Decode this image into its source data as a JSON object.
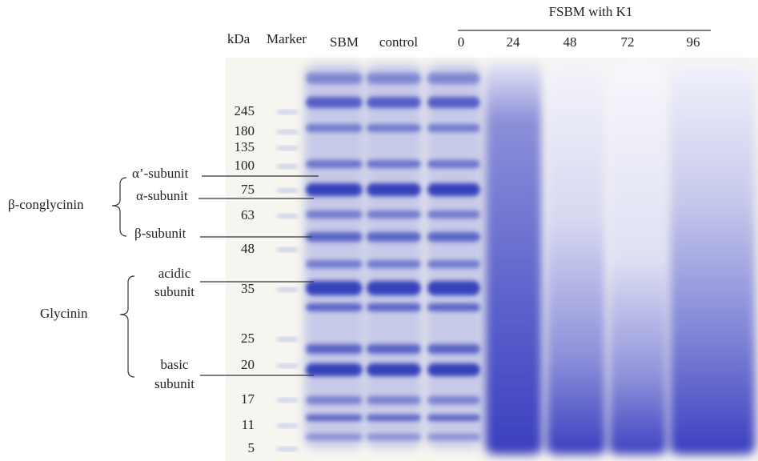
{
  "header": {
    "kda": "kDa",
    "marker": "Marker",
    "lanes": [
      "SBM",
      "control"
    ],
    "group": {
      "title": "FSBM with K1",
      "lanes": [
        "0",
        "24",
        "48",
        "72",
        "96"
      ]
    }
  },
  "marker_sizes": [
    245,
    180,
    135,
    100,
    75,
    63,
    48,
    35,
    25,
    20,
    17,
    11,
    5
  ],
  "annotations": {
    "beta_conglycinin": {
      "label": "β-conglycinin",
      "subunits": [
        "α’-subunit",
        "α-subunit",
        "β-subunit"
      ]
    },
    "glycinin": {
      "label": "Glycinin",
      "subunits": [
        [
          "acidic",
          "subunit"
        ],
        [
          "basic",
          "subunit"
        ]
      ]
    }
  }
}
